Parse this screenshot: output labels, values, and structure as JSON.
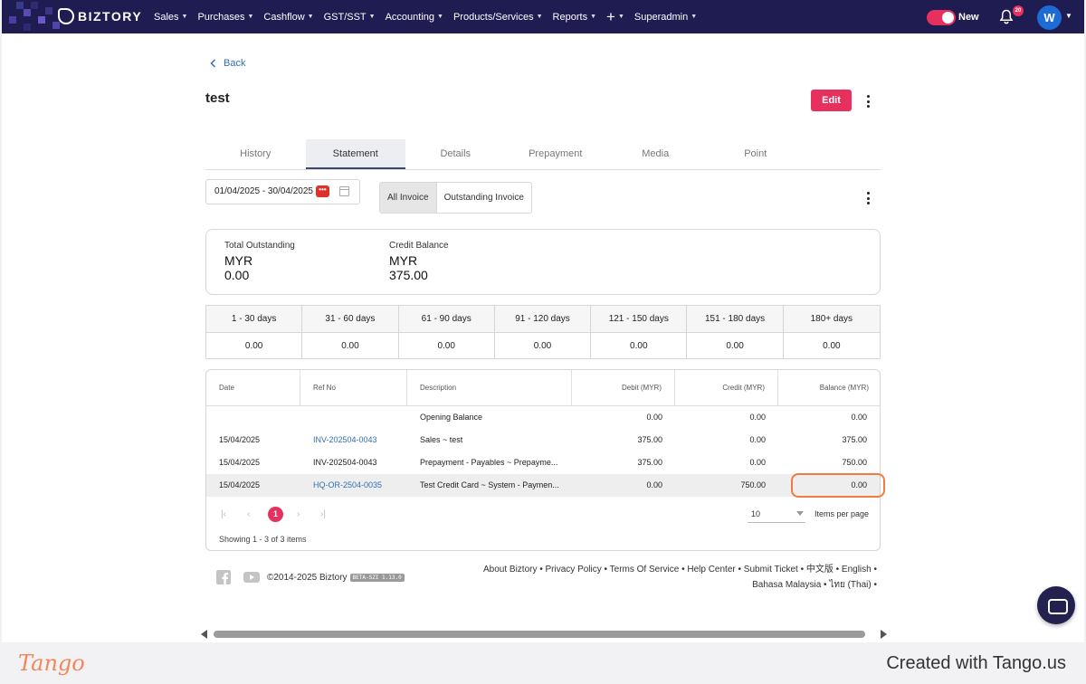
{
  "nav": {
    "brand": "BIZTORY",
    "menu": [
      {
        "label": "Sales"
      },
      {
        "label": "Purchases"
      },
      {
        "label": "Cashflow"
      },
      {
        "label": "GST/SST"
      },
      {
        "label": "Accounting"
      },
      {
        "label": "Products/Services"
      },
      {
        "label": "Reports"
      },
      {
        "label": "+"
      },
      {
        "label": "Superadmin"
      }
    ],
    "toggle_label": "New",
    "notification_count": "20",
    "avatar_initial": "W",
    "colors": {
      "nav_bg": "#1f1c52",
      "accent": "#e8305f"
    }
  },
  "page": {
    "back_label": "Back",
    "title": "test",
    "edit_label": "Edit"
  },
  "tabs": [
    {
      "label": "History",
      "active": false
    },
    {
      "label": "Statement",
      "active": true
    },
    {
      "label": "Details",
      "active": false
    },
    {
      "label": "Prepayment",
      "active": false
    },
    {
      "label": "Media",
      "active": false
    },
    {
      "label": "Point",
      "active": false
    }
  ],
  "filters": {
    "date_range": "01/04/2025 - 30/04/2025",
    "date_badge": "•••",
    "segments": [
      {
        "label": "All Invoice",
        "active": true
      },
      {
        "label": "Outstanding Invoice",
        "active": false
      }
    ]
  },
  "summary": {
    "total_outstanding": {
      "label": "Total Outstanding",
      "currency": "MYR",
      "value": "0.00"
    },
    "credit_balance": {
      "label": "Credit Balance",
      "currency": "MYR",
      "value": "375.00"
    }
  },
  "aging": {
    "headers": [
      "1 - 30 days",
      "31 - 60 days",
      "61 - 90 days",
      "91 - 120 days",
      "121 - 150 days",
      "151 - 180 days",
      "180+ days"
    ],
    "values": [
      "0.00",
      "0.00",
      "0.00",
      "0.00",
      "0.00",
      "0.00",
      "0.00"
    ]
  },
  "statement": {
    "columns": [
      "Date",
      "Ref No",
      "Description",
      "Debit (MYR)",
      "Credit (MYR)",
      "Balance (MYR)"
    ],
    "rows": [
      {
        "date": "",
        "ref": "",
        "ref_link": false,
        "description": "Opening Balance",
        "debit": "0.00",
        "credit": "0.00",
        "balance": "0.00"
      },
      {
        "date": "15/04/2025",
        "ref": "INV-202504-0043",
        "ref_link": true,
        "description": "Sales ~ test",
        "debit": "375.00",
        "credit": "0.00",
        "balance": "375.00"
      },
      {
        "date": "15/04/2025",
        "ref": "INV-202504-0043",
        "ref_link": false,
        "description": "Prepayment - Payables ~ Prepayme...",
        "debit": "375.00",
        "credit": "0.00",
        "balance": "750.00"
      },
      {
        "date": "15/04/2025",
        "ref": "HQ-OR-2504-0035",
        "ref_link": true,
        "description": "Test Credit Card ~ System - Paymen...",
        "debit": "0.00",
        "credit": "750.00",
        "balance": "0.00"
      }
    ],
    "pager": {
      "current_page": "1",
      "page_size": "10",
      "page_size_label": "Items per page"
    },
    "showing_text": "Showing 1 - 3 of 3 items"
  },
  "footer": {
    "copyright": "©2014-2025 Biztory",
    "beta_tag": "BETA-SZI 1.13.0",
    "links_line1": "About Biztory • Privacy Policy • Terms Of Service • Help Center • Submit Ticket • 中文版 • English •",
    "links_line2": "Bahasa Malaysia • ไทย (Thai) •"
  },
  "tango": {
    "logo": "Tango",
    "credit": "Created with Tango.us"
  }
}
